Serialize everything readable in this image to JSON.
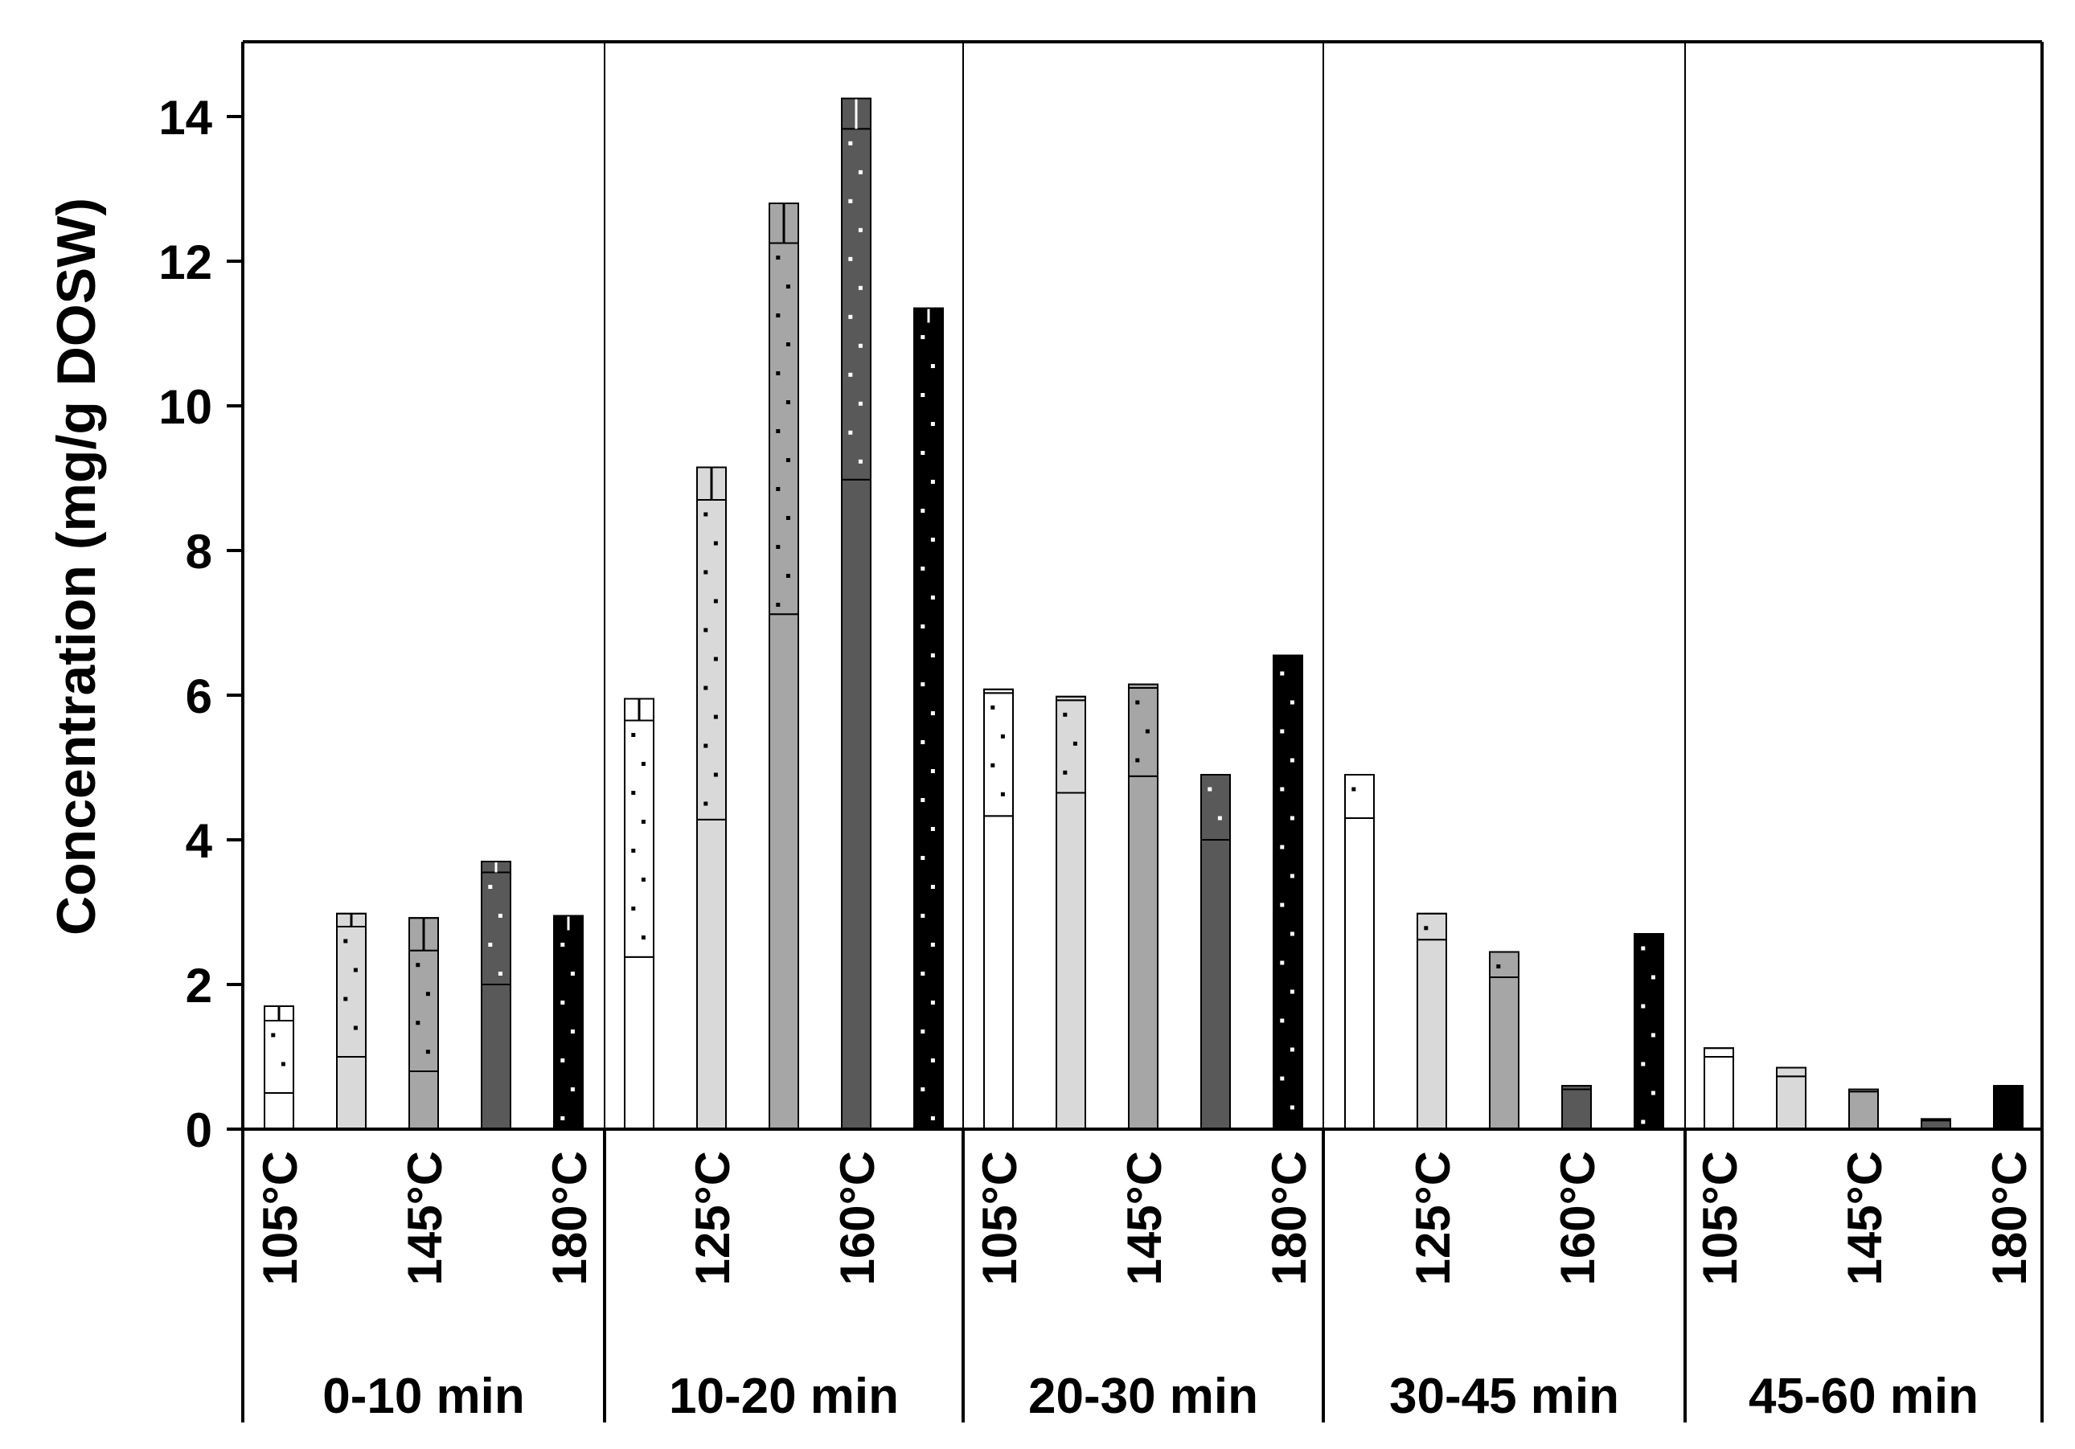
{
  "chart_data": {
    "type": "bar",
    "stacked": true,
    "ylabel": "Concentration (mg/g DOSW)",
    "xlabel": "",
    "ylim": [
      0,
      15
    ],
    "yticks": [
      0,
      2,
      4,
      6,
      8,
      10,
      12,
      14
    ],
    "groups": [
      "0-10 min",
      "10-20 min",
      "20-30 min",
      "30-45 min",
      "45-60 min"
    ],
    "temperatures": [
      "105°C",
      "125°C",
      "145°C",
      "160°C",
      "180°C"
    ],
    "visible_temperature_labels": [
      [
        "105°C",
        "145°C",
        "180°C"
      ],
      [
        "125°C",
        "160°C"
      ],
      [
        "105°C",
        "145°C",
        "180°C"
      ],
      [
        "125°C",
        "160°C"
      ],
      [
        "105°C",
        "145°C",
        "180°C"
      ]
    ],
    "temperature_colors": {
      "105°C": "#ffffff",
      "125°C": "#d9d9d9",
      "145°C": "#a6a6a6",
      "160°C": "#595959",
      "180°C": "#000000"
    },
    "segment_patterns": [
      "solid",
      "dotted",
      "solid"
    ],
    "bars": [
      {
        "group": "0-10 min",
        "temperature": "105°C",
        "segments": [
          0.5,
          1.0,
          0.2
        ]
      },
      {
        "group": "0-10 min",
        "temperature": "125°C",
        "segments": [
          1.0,
          1.8,
          0.18
        ]
      },
      {
        "group": "0-10 min",
        "temperature": "145°C",
        "segments": [
          0.8,
          1.67,
          0.45
        ]
      },
      {
        "group": "0-10 min",
        "temperature": "160°C",
        "segments": [
          2.0,
          1.55,
          0.15
        ]
      },
      {
        "group": "0-10 min",
        "temperature": "180°C",
        "segments": [
          0,
          2.75,
          0.2
        ]
      },
      {
        "group": "10-20 min",
        "temperature": "105°C",
        "segments": [
          2.38,
          3.27,
          0.3
        ]
      },
      {
        "group": "10-20 min",
        "temperature": "125°C",
        "segments": [
          4.28,
          4.42,
          0.45
        ]
      },
      {
        "group": "10-20 min",
        "temperature": "145°C",
        "segments": [
          7.12,
          5.13,
          0.55
        ]
      },
      {
        "group": "10-20 min",
        "temperature": "160°C",
        "segments": [
          8.98,
          4.85,
          0.42
        ]
      },
      {
        "group": "10-20 min",
        "temperature": "180°C",
        "segments": [
          0,
          11.15,
          0.2
        ]
      },
      {
        "group": "20-30 min",
        "temperature": "105°C",
        "segments": [
          4.33,
          1.7,
          0.05
        ]
      },
      {
        "group": "20-30 min",
        "temperature": "125°C",
        "segments": [
          4.65,
          1.28,
          0.05
        ]
      },
      {
        "group": "20-30 min",
        "temperature": "145°C",
        "segments": [
          4.88,
          1.22,
          0.05
        ]
      },
      {
        "group": "20-30 min",
        "temperature": "160°C",
        "segments": [
          4.0,
          0.9,
          0
        ]
      },
      {
        "group": "20-30 min",
        "temperature": "180°C",
        "segments": [
          0,
          6.5,
          0.05
        ]
      },
      {
        "group": "30-45 min",
        "temperature": "105°C",
        "segments": [
          4.3,
          0.6,
          0
        ]
      },
      {
        "group": "30-45 min",
        "temperature": "125°C",
        "segments": [
          2.62,
          0.36,
          0
        ]
      },
      {
        "group": "30-45 min",
        "temperature": "145°C",
        "segments": [
          2.1,
          0.35,
          0
        ]
      },
      {
        "group": "30-45 min",
        "temperature": "160°C",
        "segments": [
          0.55,
          0.05,
          0
        ]
      },
      {
        "group": "30-45 min",
        "temperature": "180°C",
        "segments": [
          0,
          2.7,
          0
        ]
      },
      {
        "group": "45-60 min",
        "temperature": "105°C",
        "segments": [
          1.0,
          0.12,
          0
        ]
      },
      {
        "group": "45-60 min",
        "temperature": "125°C",
        "segments": [
          0.73,
          0.12,
          0
        ]
      },
      {
        "group": "45-60 min",
        "temperature": "145°C",
        "segments": [
          0.52,
          0.03,
          0
        ]
      },
      {
        "group": "45-60 min",
        "temperature": "160°C",
        "segments": [
          0.12,
          0.02,
          0
        ]
      },
      {
        "group": "45-60 min",
        "temperature": "180°C",
        "segments": [
          0.6,
          0,
          0
        ]
      }
    ]
  }
}
